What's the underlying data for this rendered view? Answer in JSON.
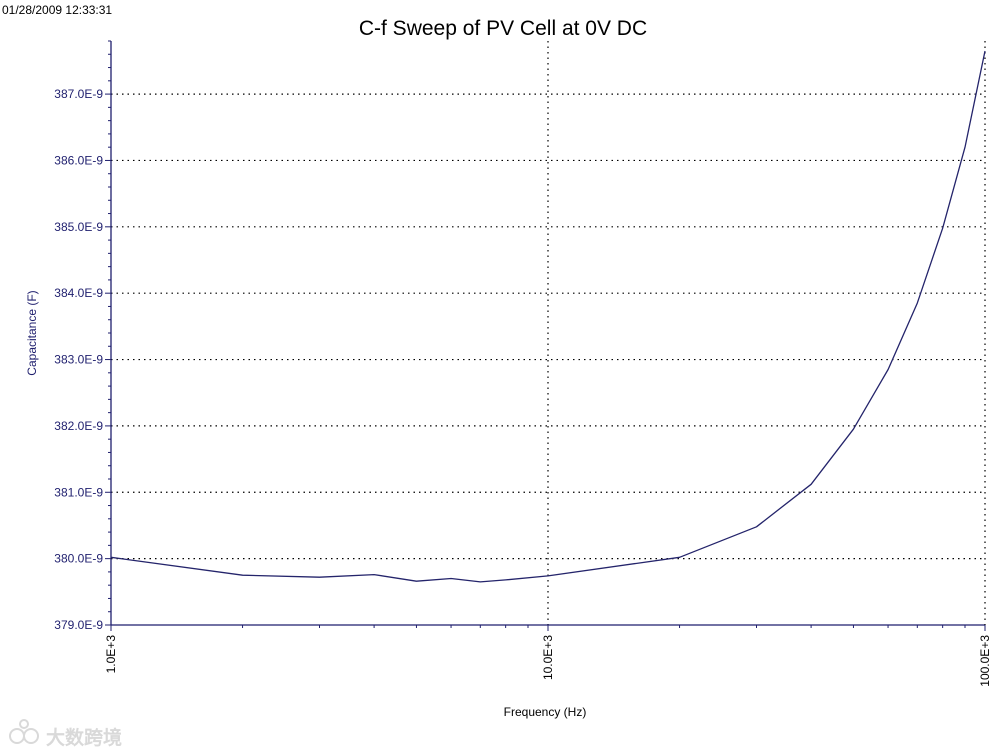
{
  "timestamp": "01/28/2009 12:33:31",
  "watermark": {
    "text": "大数跨境"
  },
  "colors": {
    "axis": "#1f1f6e",
    "series": "#24246b",
    "grid": "#000000",
    "ytick_text": "#1f1f6e",
    "xtick_text": "#000000"
  },
  "chart_data": {
    "type": "line",
    "title": "C-f Sweep of PV Cell at 0V DC",
    "xlabel": "Frequency (Hz)",
    "ylabel": "Capacitance (F)",
    "xscale": "log",
    "xlim": [
      1000,
      100000
    ],
    "ylim": [
      3.79e-07,
      3.878e-07
    ],
    "grid": true,
    "x_ticks": [
      {
        "value": 1000,
        "label": "1.0E+3"
      },
      {
        "value": 10000,
        "label": "10.0E+3"
      },
      {
        "value": 100000,
        "label": "100.0E+3"
      }
    ],
    "y_ticks": [
      {
        "value": 3.79e-07,
        "label": "379.0E-9"
      },
      {
        "value": 3.8e-07,
        "label": "380.0E-9"
      },
      {
        "value": 3.81e-07,
        "label": "381.0E-9"
      },
      {
        "value": 3.82e-07,
        "label": "382.0E-9"
      },
      {
        "value": 3.83e-07,
        "label": "383.0E-9"
      },
      {
        "value": 3.84e-07,
        "label": "384.0E-9"
      },
      {
        "value": 3.85e-07,
        "label": "385.0E-9"
      },
      {
        "value": 3.86e-07,
        "label": "386.0E-9"
      },
      {
        "value": 3.87e-07,
        "label": "387.0E-9"
      }
    ],
    "series": [
      {
        "name": "Capacitance",
        "x": [
          1000,
          2000,
          3000,
          4000,
          5000,
          6000,
          7000,
          8000,
          10000,
          20000,
          30000,
          40000,
          50000,
          60000,
          70000,
          80000,
          90000,
          100000
        ],
        "y": [
          3.8002e-07,
          3.7975e-07,
          3.7972e-07,
          3.7976e-07,
          3.7966e-07,
          3.797e-07,
          3.7965e-07,
          3.7968e-07,
          3.7974e-07,
          3.8002e-07,
          3.8048e-07,
          3.8112e-07,
          3.8195e-07,
          3.8285e-07,
          3.8385e-07,
          3.8498e-07,
          3.862e-07,
          3.8765e-07
        ]
      }
    ]
  }
}
